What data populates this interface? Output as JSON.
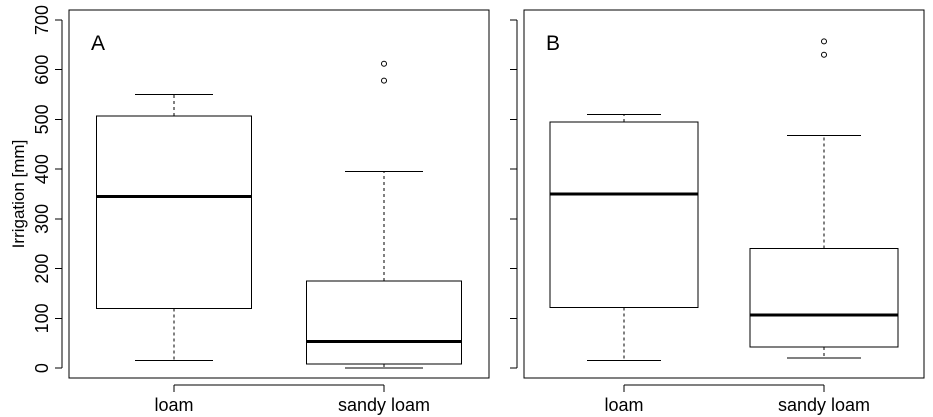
{
  "chart_data": [
    {
      "type": "box",
      "panel_label": "A",
      "ylabel": "Irrigation [mm]",
      "ylim": [
        -20,
        720
      ],
      "yticks": [
        0,
        100,
        200,
        300,
        400,
        500,
        600,
        700
      ],
      "show_y_tick_labels": true,
      "categories": [
        "loam",
        "sandy loam"
      ],
      "boxes": [
        {
          "category": "loam",
          "whisker_low": 15,
          "q1": 120,
          "median": 345,
          "q3": 507,
          "whisker_high": 550,
          "outliers": []
        },
        {
          "category": "sandy loam",
          "whisker_low": 0,
          "q1": 8,
          "median": 53,
          "q3": 175,
          "whisker_high": 395,
          "outliers": [
            578,
            612
          ]
        }
      ],
      "grid": false
    },
    {
      "type": "box",
      "panel_label": "B",
      "ylabel": "",
      "ylim": [
        -20,
        720
      ],
      "yticks": [
        0,
        100,
        200,
        300,
        400,
        500,
        600,
        700
      ],
      "show_y_tick_labels": false,
      "categories": [
        "loam",
        "sandy loam"
      ],
      "boxes": [
        {
          "category": "loam",
          "whisker_low": 15,
          "q1": 122,
          "median": 350,
          "q3": 495,
          "whisker_high": 510,
          "outliers": []
        },
        {
          "category": "sandy loam",
          "whisker_low": 20,
          "q1": 42,
          "median": 107,
          "q3": 240,
          "whisker_high": 468,
          "outliers": [
            630,
            657
          ]
        }
      ],
      "grid": false
    }
  ]
}
